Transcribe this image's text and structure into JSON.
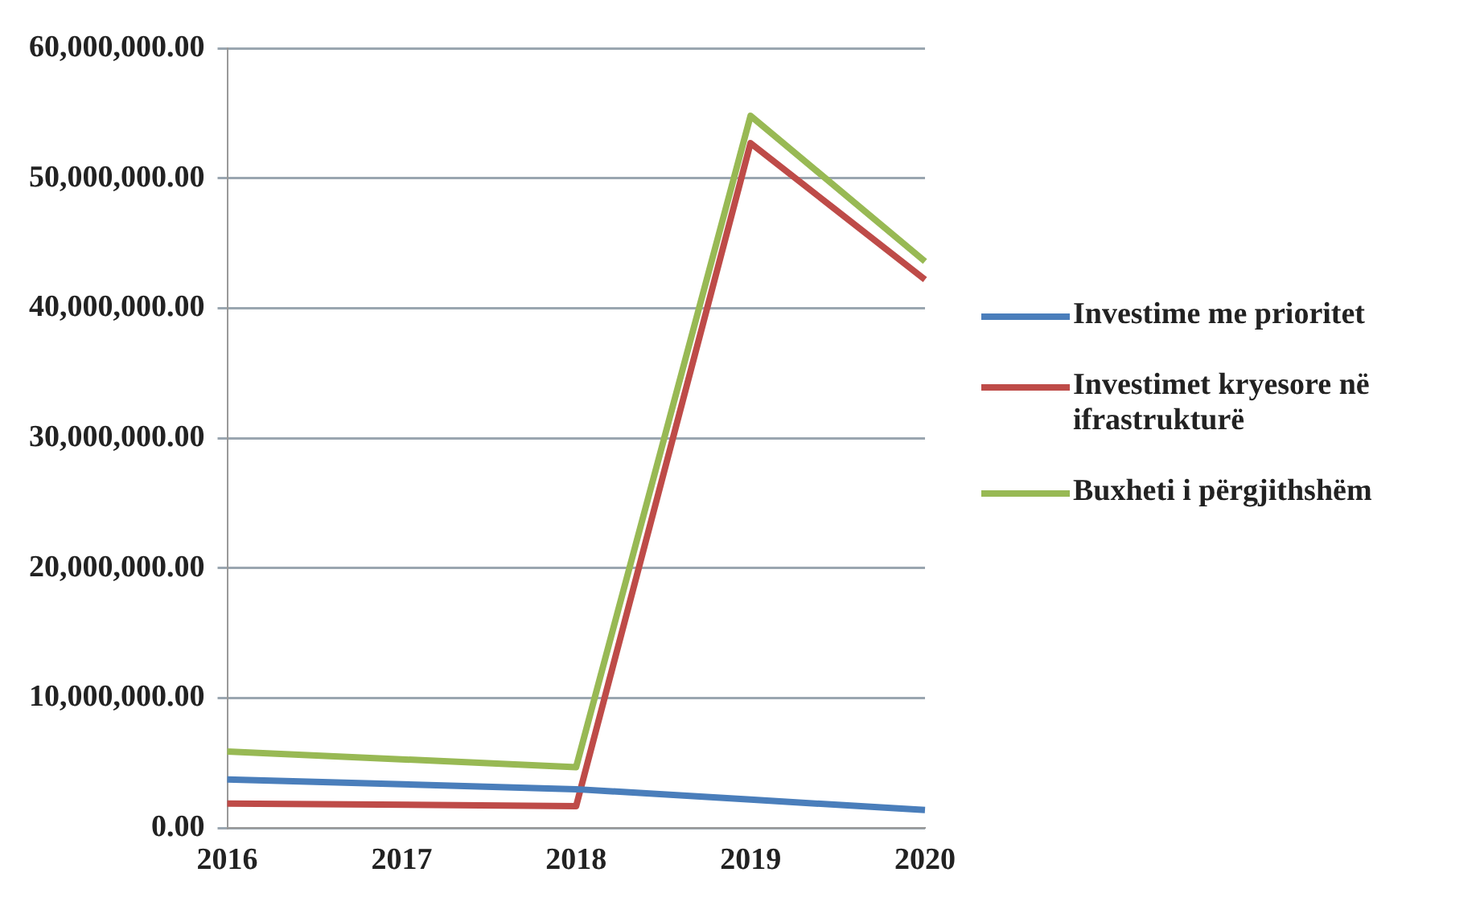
{
  "chart_data": {
    "type": "line",
    "categories": [
      "2016",
      "2017",
      "2018",
      "2019",
      "2020"
    ],
    "series": [
      {
        "name": "Investime me prioritet",
        "color": "#4a7ebb",
        "values": [
          3750000,
          null,
          3000000,
          2200000,
          1400000
        ]
      },
      {
        "name": "Investimet kryesore në ifrastrukturë",
        "color": "#be4b48",
        "values": [
          1900000,
          null,
          1700000,
          52700000,
          42200000
        ]
      },
      {
        "name": "Buxheti i përgjithshëm",
        "color": "#98b954",
        "values": [
          5900000,
          null,
          4700000,
          54800000,
          43600000
        ]
      }
    ],
    "ylim": [
      0,
      60000000
    ],
    "yticks": [
      {
        "value": 0,
        "label": "0.00"
      },
      {
        "value": 10000000,
        "label": "10,000,000.00"
      },
      {
        "value": 20000000,
        "label": "20,000,000.00"
      },
      {
        "value": 30000000,
        "label": "30,000,000.00"
      },
      {
        "value": 40000000,
        "label": "40,000,000.00"
      },
      {
        "value": 50000000,
        "label": "50,000,000.00"
      },
      {
        "value": 60000000,
        "label": "60,000,000.00"
      }
    ],
    "grid": "y",
    "legend": "right",
    "marker": "none",
    "line_style": "solid"
  }
}
